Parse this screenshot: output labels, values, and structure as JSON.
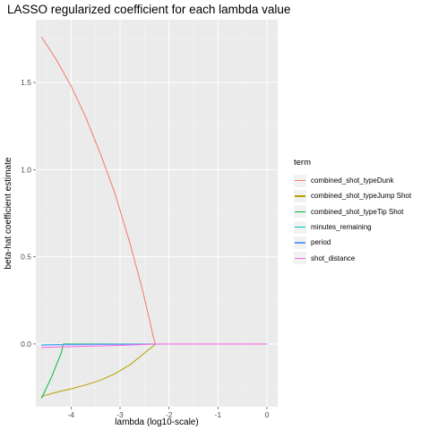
{
  "chart_data": {
    "type": "line",
    "title": "LASSO regularized coefficient for each lambda value",
    "xlabel": "lambda (log10-scale)",
    "ylabel": "beta-hat coefficient estimate",
    "xlim": [
      -4.72,
      0.22
    ],
    "ylim": [
      -0.36,
      1.86
    ],
    "x_ticks": [
      -4,
      -3,
      -2,
      -1,
      0
    ],
    "x_tick_labels": [
      "-4",
      "-3",
      "-2",
      "-1",
      "0"
    ],
    "y_ticks": [
      0.0,
      0.5,
      1.0,
      1.5
    ],
    "y_tick_labels": [
      "0.0",
      "0.5",
      "1.0",
      "1.5"
    ],
    "grid": true,
    "legend_position": "right",
    "legend_title": "term",
    "series": [
      {
        "name": "combined_shot_typeDunk",
        "color": "#F8766D",
        "x": [
          -4.6,
          -4.3,
          -4.0,
          -3.7,
          -3.4,
          -3.1,
          -2.8,
          -2.55,
          -2.4,
          -2.32,
          -2.28,
          -2.0,
          -1.0,
          0.0
        ],
        "y": [
          1.76,
          1.63,
          1.48,
          1.3,
          1.09,
          0.86,
          0.58,
          0.32,
          0.14,
          0.04,
          0.0,
          0.0,
          0.0,
          0.0
        ]
      },
      {
        "name": "combined_shot_typeJump Shot",
        "color": "#B79F00",
        "x": [
          -4.6,
          -4.4,
          -4.2,
          -4.0,
          -3.7,
          -3.4,
          -3.1,
          -2.8,
          -2.6,
          -2.45,
          -2.35,
          -2.3,
          -2.28,
          -2.0,
          -1.0,
          0.0
        ],
        "y": [
          -0.3,
          -0.285,
          -0.27,
          -0.258,
          -0.235,
          -0.208,
          -0.17,
          -0.12,
          -0.075,
          -0.04,
          -0.018,
          -0.006,
          0.0,
          0.0,
          0.0,
          0.0
        ]
      },
      {
        "name": "combined_shot_typeTip Shot",
        "color": "#00BA38",
        "x": [
          -4.6,
          -4.5,
          -4.4,
          -4.3,
          -4.2,
          -4.16,
          -4.0,
          -3.0,
          -2.0,
          -1.0,
          0.0
        ],
        "y": [
          -0.31,
          -0.25,
          -0.19,
          -0.12,
          -0.05,
          0.0,
          0.0,
          0.0,
          0.0,
          0.0,
          0.0
        ]
      },
      {
        "name": "minutes_remaining",
        "color": "#00BFC4",
        "x": [
          -4.6,
          -4.2,
          -3.0,
          -2.0,
          -1.0,
          0.0
        ],
        "y": [
          -0.005,
          -0.003,
          -0.001,
          0.0,
          0.0,
          0.0
        ]
      },
      {
        "name": "period",
        "color": "#619CFF",
        "x": [
          -4.6,
          -4.3,
          -4.0,
          -3.0,
          -2.0,
          -1.0,
          0.0
        ],
        "y": [
          -0.007,
          -0.005,
          -0.004,
          -0.002,
          0.0,
          0.0,
          0.0
        ]
      },
      {
        "name": "shot_distance",
        "color": "#F564E3",
        "x": [
          -4.6,
          -4.2,
          -3.8,
          -3.4,
          -3.0,
          -2.6,
          -2.3,
          -2.0,
          -1.0,
          0.0
        ],
        "y": [
          -0.02,
          -0.017,
          -0.014,
          -0.011,
          -0.008,
          -0.004,
          0.0,
          0.0,
          0.0,
          0.0
        ]
      }
    ]
  }
}
